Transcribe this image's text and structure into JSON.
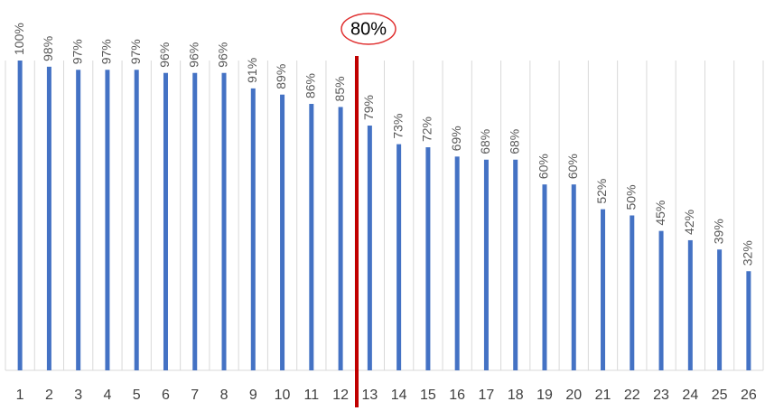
{
  "chart_data": {
    "type": "bar",
    "categories": [
      "1",
      "2",
      "3",
      "4",
      "5",
      "6",
      "7",
      "8",
      "9",
      "10",
      "11",
      "12",
      "13",
      "14",
      "15",
      "16",
      "17",
      "18",
      "19",
      "20",
      "21",
      "22",
      "23",
      "24",
      "25",
      "26"
    ],
    "values": [
      100,
      98,
      97,
      97,
      97,
      96,
      96,
      96,
      91,
      89,
      86,
      85,
      79,
      73,
      72,
      69,
      68,
      68,
      60,
      60,
      52,
      50,
      45,
      42,
      39,
      32
    ],
    "value_labels": [
      "100%",
      "98%",
      "97%",
      "97%",
      "97%",
      "96%",
      "96%",
      "96%",
      "91%",
      "89%",
      "86%",
      "85%",
      "79%",
      "73%",
      "72%",
      "69%",
      "68%",
      "68%",
      "60%",
      "60%",
      "52%",
      "50%",
      "45%",
      "42%",
      "39%",
      "32%"
    ],
    "color": "#4472c4",
    "ylim": [
      0,
      100
    ],
    "annotation": "80%"
  }
}
